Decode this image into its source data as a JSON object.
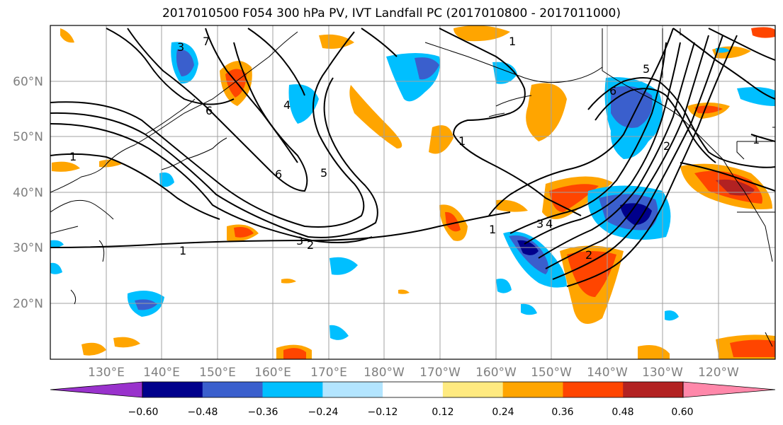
{
  "title": "2017010500 F054 300 hPa PV, IVT Landfall PC (2017010800 - 2017011000)",
  "map": {
    "lon_labels": [
      "130°E",
      "140°E",
      "150°E",
      "160°E",
      "170°E",
      "180°W",
      "170°W",
      "160°W",
      "150°W",
      "140°W",
      "130°W",
      "120°W"
    ],
    "lat_labels": [
      "60°N",
      "50°N",
      "40°N",
      "30°N",
      "20°N"
    ],
    "contour_labels": [
      "1",
      "1",
      "1",
      "2",
      "3",
      "3",
      "4",
      "5",
      "6",
      "6",
      "7",
      "1",
      "1",
      "2",
      "3",
      "4",
      "5",
      "6",
      "2",
      "1"
    ],
    "filled_field_colors": {
      "positive": [
        "#ffea80",
        "#ffa500",
        "#ff4500",
        "#b22222",
        "#ff88aa"
      ],
      "negative": [
        "#b3e5ff",
        "#00bfff",
        "#3a5fcd",
        "#00008b",
        "#9932cc"
      ]
    }
  },
  "colorbar": {
    "ticks": [
      "−0.60",
      "−0.48",
      "−0.36",
      "−0.24",
      "−0.12",
      "0.12",
      "0.24",
      "0.36",
      "0.48",
      "0.60"
    ],
    "colors": [
      "#9932cc",
      "#00008b",
      "#3a5fcd",
      "#00bfff",
      "#b3e5ff",
      "#ffffff",
      "#ffea80",
      "#ffa500",
      "#ff4500",
      "#b22222",
      "#ff88aa"
    ]
  }
}
